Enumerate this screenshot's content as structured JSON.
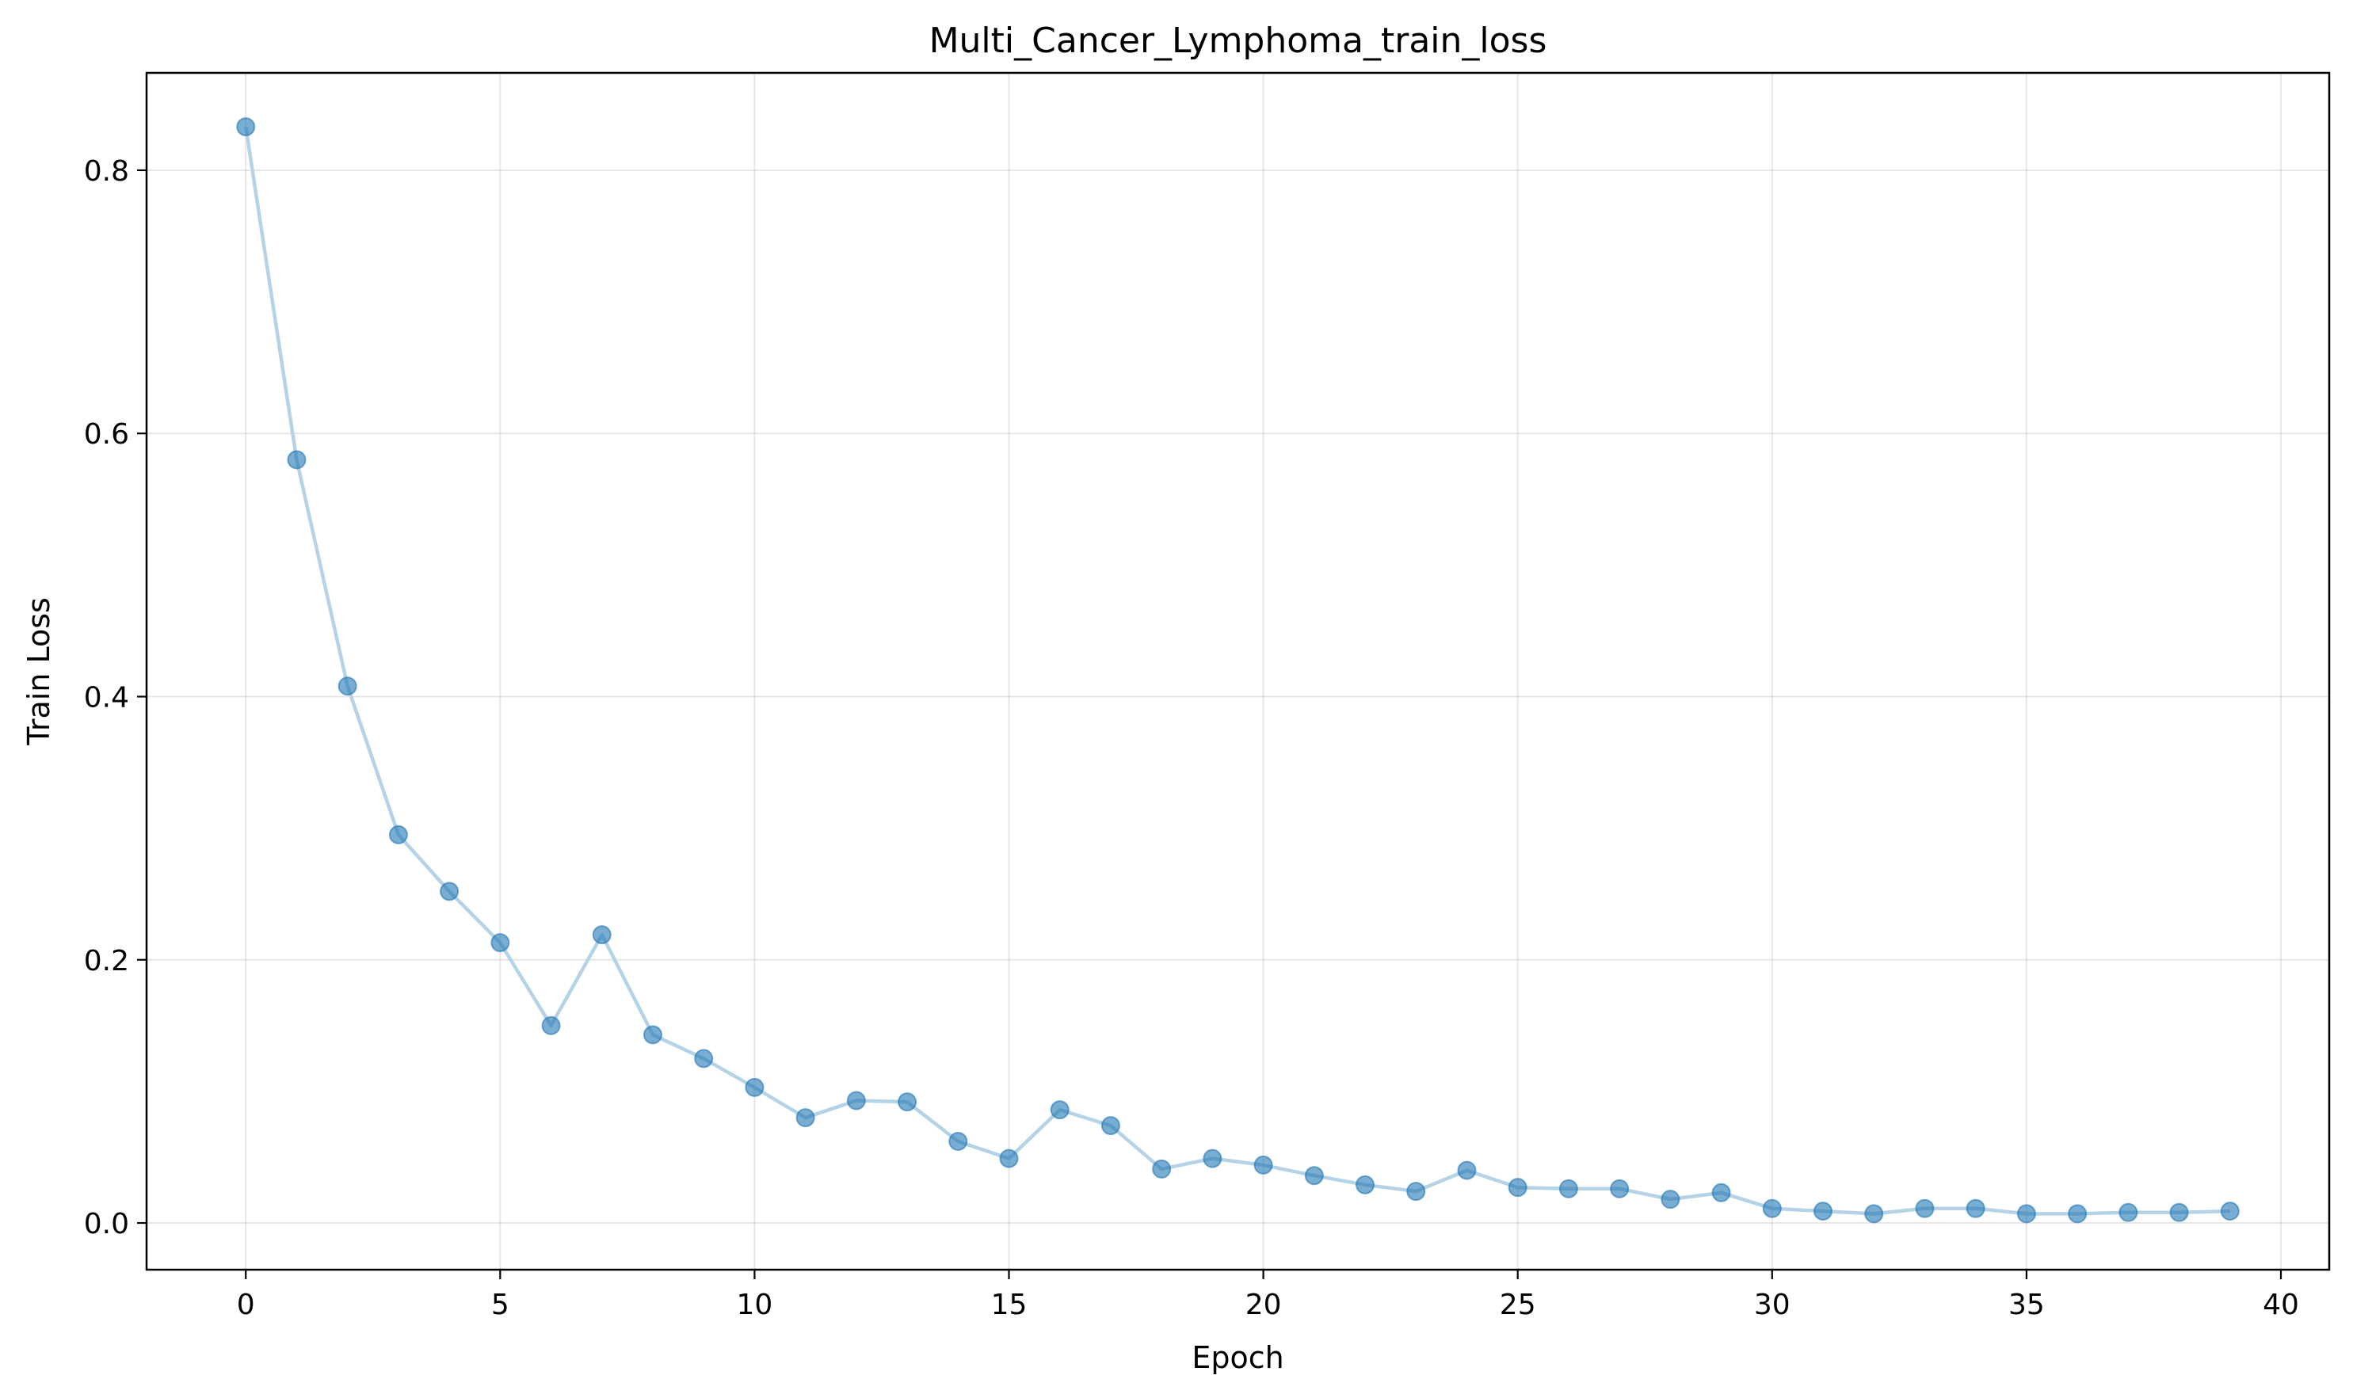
{
  "chart_data": {
    "type": "line",
    "title": "Multi_Cancer_Lymphoma_train_loss",
    "xlabel": "Epoch",
    "ylabel": "Train Loss",
    "xlim": [
      -1.95,
      40.95
    ],
    "ylim": [
      -0.0355,
      0.874
    ],
    "x_ticks": [
      0,
      5,
      10,
      15,
      20,
      25,
      30,
      35,
      40
    ],
    "x_tick_labels": [
      "0",
      "5",
      "10",
      "15",
      "20",
      "25",
      "30",
      "35",
      "40"
    ],
    "y_ticks": [
      0.0,
      0.2,
      0.4,
      0.6,
      0.8
    ],
    "y_tick_labels": [
      "0.0",
      "0.2",
      "0.4",
      "0.6",
      "0.8"
    ],
    "grid": true,
    "legend": "none",
    "colors": {
      "line": "#b5d3e7",
      "marker": "#1f77b4"
    },
    "series": [
      {
        "x": [
          0,
          1,
          2,
          3,
          4,
          5,
          6,
          7,
          8,
          9,
          10,
          11,
          12,
          13,
          14,
          15,
          16,
          17,
          18,
          19,
          20,
          21,
          22,
          23,
          24,
          25,
          26,
          27,
          28,
          29,
          30,
          31,
          32,
          33,
          34,
          35,
          36,
          37,
          38,
          39
        ],
        "values": [
          0.833,
          0.58,
          0.408,
          0.295,
          0.252,
          0.213,
          0.15,
          0.219,
          0.143,
          0.125,
          0.103,
          0.08,
          0.093,
          0.092,
          0.062,
          0.049,
          0.086,
          0.074,
          0.041,
          0.049,
          0.044,
          0.036,
          0.029,
          0.024,
          0.04,
          0.027,
          0.026,
          0.026,
          0.018,
          0.023,
          0.011,
          0.009,
          0.007,
          0.011,
          0.011,
          0.007,
          0.007,
          0.008,
          0.008,
          0.009
        ]
      }
    ]
  }
}
